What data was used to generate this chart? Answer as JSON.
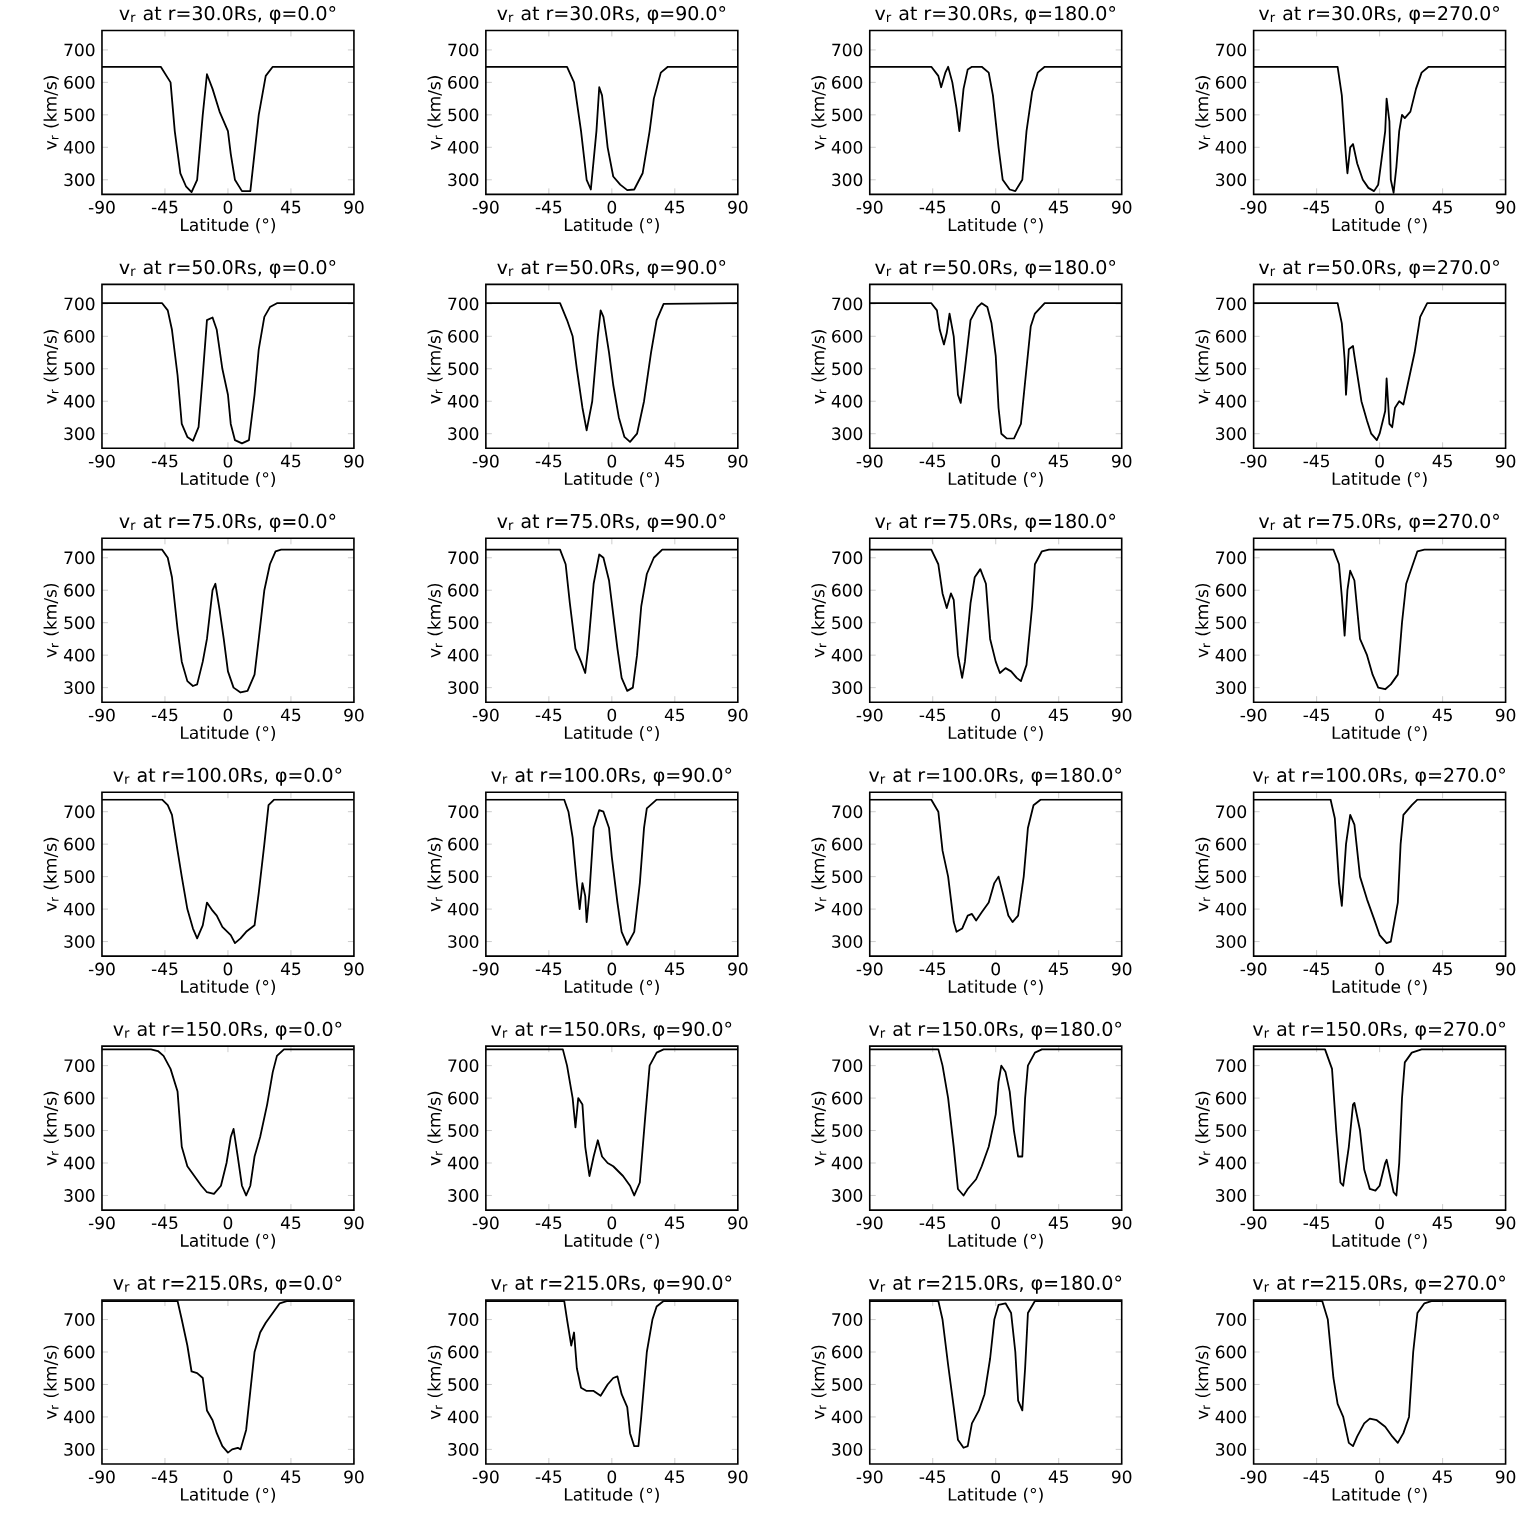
{
  "chart_data": [
    {
      "type": "line",
      "title": "v$_{r}$ at r=30.0Rs, φ=0.0°",
      "xlabel": "Latitude (°)",
      "ylabel": "v$_{r}$ (km/s)",
      "color": "#000000",
      "xlim": [
        -90,
        90
      ],
      "ylim": [
        255,
        760
      ],
      "xticks": [
        -90,
        -45,
        0,
        45,
        90
      ],
      "yticks": [
        300,
        400,
        500,
        600,
        700
      ],
      "x": [
        -90,
        -48,
        -41,
        -38,
        -34,
        -30,
        -26,
        -22,
        -18,
        -15,
        -11,
        -6,
        0,
        2,
        5,
        10,
        16,
        22,
        27,
        32,
        90
      ],
      "values": [
        648,
        648,
        600,
        450,
        320,
        280,
        262,
        300,
        500,
        625,
        580,
        510,
        450,
        380,
        300,
        265,
        265,
        500,
        620,
        648,
        648
      ]
    },
    {
      "type": "line",
      "title": "v$_{r}$ at r=30.0Rs, φ=90.0°",
      "xlabel": "Latitude (°)",
      "ylabel": "v$_{r}$ (km/s)",
      "color": "#000000",
      "xlim": [
        -90,
        90
      ],
      "ylim": [
        255,
        760
      ],
      "xticks": [
        -90,
        -45,
        0,
        45,
        90
      ],
      "yticks": [
        300,
        400,
        500,
        600,
        700
      ],
      "x": [
        -90,
        -32,
        -27,
        -22,
        -18,
        -15,
        -11,
        -9,
        -7,
        -3,
        1,
        6,
        11,
        16,
        22,
        27,
        30,
        35,
        40,
        90
      ],
      "values": [
        648,
        648,
        600,
        450,
        300,
        270,
        450,
        585,
        560,
        400,
        310,
        285,
        268,
        270,
        320,
        450,
        550,
        630,
        648,
        648
      ]
    },
    {
      "type": "line",
      "title": "v$_{r}$ at r=30.0Rs, φ=180.0°",
      "xlabel": "Latitude (°)",
      "ylabel": "v$_{r}$ (km/s)",
      "color": "#000000",
      "xlim": [
        -90,
        90
      ],
      "ylim": [
        255,
        760
      ],
      "xticks": [
        -90,
        -45,
        0,
        45,
        90
      ],
      "yticks": [
        300,
        400,
        500,
        600,
        700
      ],
      "x": [
        -90,
        -46,
        -41,
        -39,
        -36,
        -34,
        -31,
        -28,
        -26,
        -23,
        -20,
        -17,
        -10,
        -5,
        -2,
        2,
        5,
        10,
        14,
        19,
        22,
        26,
        30,
        35,
        90
      ],
      "values": [
        648,
        648,
        620,
        585,
        630,
        648,
        600,
        520,
        450,
        580,
        640,
        648,
        648,
        630,
        560,
        400,
        300,
        270,
        265,
        300,
        450,
        570,
        630,
        648,
        648
      ]
    },
    {
      "type": "line",
      "title": "v$_{r}$ at r=30.0Rs, φ=270.0°",
      "xlabel": "Latitude (°)",
      "ylabel": "v$_{r}$ (km/s)",
      "color": "#000000",
      "xlim": [
        -90,
        90
      ],
      "ylim": [
        255,
        760
      ],
      "xticks": [
        -90,
        -45,
        0,
        45,
        90
      ],
      "yticks": [
        300,
        400,
        500,
        600,
        700
      ],
      "x": [
        -90,
        -30,
        -27,
        -24,
        -23,
        -21,
        -19,
        -16,
        -12,
        -8,
        -4,
        -1,
        1,
        4,
        5,
        7,
        8,
        10,
        12,
        14,
        16,
        18,
        22,
        26,
        30,
        35,
        90
      ],
      "values": [
        648,
        648,
        560,
        370,
        320,
        400,
        410,
        350,
        300,
        275,
        265,
        285,
        350,
        450,
        550,
        480,
        300,
        260,
        340,
        450,
        500,
        490,
        510,
        580,
        630,
        648,
        648
      ]
    },
    {
      "type": "line",
      "title": "v$_{r}$ at r=50.0Rs, φ=0.0°",
      "xlabel": "Latitude (°)",
      "ylabel": "v$_{r}$ (km/s)",
      "color": "#000000",
      "xlim": [
        -90,
        90
      ],
      "ylim": [
        255,
        760
      ],
      "xticks": [
        -90,
        -45,
        0,
        45,
        90
      ],
      "yticks": [
        300,
        400,
        500,
        600,
        700
      ],
      "x": [
        -90,
        -47,
        -43,
        -40,
        -36,
        -33,
        -29,
        -25,
        -21,
        -18,
        -15,
        -11,
        -8,
        -4,
        0,
        2,
        5,
        10,
        15,
        19,
        22,
        26,
        30,
        35,
        90
      ],
      "values": [
        702,
        702,
        680,
        620,
        480,
        330,
        290,
        278,
        320,
        480,
        650,
        658,
        620,
        500,
        420,
        330,
        280,
        270,
        280,
        420,
        560,
        660,
        690,
        702,
        702
      ]
    },
    {
      "type": "line",
      "title": "v$_{r}$ at r=50.0Rs, φ=90.0°",
      "xlabel": "Latitude (°)",
      "ylabel": "v$_{r}$ (km/s)",
      "color": "#000000",
      "xlim": [
        -90,
        90
      ],
      "ylim": [
        255,
        760
      ],
      "xticks": [
        -90,
        -45,
        0,
        45,
        90
      ],
      "yticks": [
        300,
        400,
        500,
        600,
        700
      ],
      "x": [
        -90,
        -37,
        -32,
        -28,
        -25,
        -21,
        -18,
        -14,
        -10,
        -8,
        -6,
        -2,
        1,
        5,
        9,
        13,
        18,
        23,
        28,
        32,
        37,
        90
      ],
      "values": [
        702,
        702,
        650,
        600,
        500,
        380,
        310,
        400,
        600,
        680,
        660,
        550,
        450,
        350,
        290,
        275,
        300,
        400,
        550,
        650,
        700,
        702
      ]
    },
    {
      "type": "line",
      "title": "v$_{r}$ at r=50.0Rs, φ=180.0°",
      "xlabel": "Latitude (°)",
      "ylabel": "v$_{r}$ (km/s)",
      "color": "#000000",
      "xlim": [
        -90,
        90
      ],
      "ylim": [
        255,
        760
      ],
      "xticks": [
        -90,
        -45,
        0,
        45,
        90
      ],
      "yticks": [
        300,
        400,
        500,
        600,
        700
      ],
      "x": [
        -90,
        -46,
        -42,
        -40,
        -37,
        -35,
        -33,
        -30,
        -27,
        -25,
        -22,
        -18,
        -13,
        -10,
        -6,
        -3,
        0,
        2,
        4,
        8,
        13,
        18,
        21,
        25,
        28,
        35,
        90
      ],
      "values": [
        702,
        702,
        680,
        620,
        575,
        610,
        670,
        600,
        420,
        395,
        500,
        650,
        690,
        702,
        690,
        640,
        540,
        380,
        300,
        285,
        285,
        330,
        460,
        630,
        670,
        702,
        702
      ]
    },
    {
      "type": "line",
      "title": "v$_{r}$ at r=50.0Rs, φ=270.0°",
      "xlabel": "Latitude (°)",
      "ylabel": "v$_{r}$ (km/s)",
      "color": "#000000",
      "xlim": [
        -90,
        90
      ],
      "ylim": [
        255,
        760
      ],
      "xticks": [
        -90,
        -45,
        0,
        45,
        90
      ],
      "yticks": [
        300,
        400,
        500,
        600,
        700
      ],
      "x": [
        -90,
        -30,
        -27,
        -25,
        -24,
        -22,
        -19,
        -18,
        -13,
        -9,
        -6,
        -2,
        0,
        4,
        5,
        7,
        9,
        11,
        14,
        17,
        20,
        25,
        29,
        34,
        90
      ],
      "values": [
        702,
        702,
        640,
        530,
        420,
        560,
        570,
        540,
        400,
        340,
        300,
        280,
        300,
        370,
        470,
        330,
        320,
        380,
        400,
        390,
        450,
        550,
        660,
        702,
        702
      ]
    },
    {
      "type": "line",
      "title": "v$_{r}$ at r=75.0Rs, φ=0.0°",
      "xlabel": "Latitude (°)",
      "ylabel": "v$_{r}$ (km/s)",
      "color": "#000000",
      "xlim": [
        -90,
        90
      ],
      "ylim": [
        255,
        760
      ],
      "xticks": [
        -90,
        -45,
        0,
        45,
        90
      ],
      "yticks": [
        300,
        400,
        500,
        600,
        700
      ],
      "x": [
        -90,
        -47,
        -43,
        -40,
        -36,
        -33,
        -29,
        -25,
        -22,
        -18,
        -15,
        -11,
        -9,
        -6,
        -3,
        0,
        4,
        9,
        14,
        19,
        22,
        26,
        30,
        34,
        38,
        90
      ],
      "values": [
        725,
        725,
        700,
        640,
        480,
        380,
        320,
        305,
        310,
        380,
        450,
        600,
        620,
        540,
        450,
        350,
        300,
        285,
        290,
        340,
        450,
        600,
        680,
        720,
        725,
        725
      ]
    },
    {
      "type": "line",
      "title": "v$_{r}$ at r=75.0Rs, φ=90.0°",
      "xlabel": "Latitude (°)",
      "ylabel": "v$_{r}$ (km/s)",
      "color": "#000000",
      "xlim": [
        -90,
        90
      ],
      "ylim": [
        255,
        760
      ],
      "xticks": [
        -90,
        -45,
        0,
        45,
        90
      ],
      "yticks": [
        300,
        400,
        500,
        600,
        700
      ],
      "x": [
        -90,
        -37,
        -33,
        -30,
        -26,
        -22,
        -19,
        -17,
        -13,
        -9,
        -6,
        -2,
        0,
        4,
        7,
        11,
        15,
        18,
        21,
        25,
        30,
        36,
        90
      ],
      "values": [
        725,
        725,
        680,
        560,
        420,
        380,
        345,
        420,
        620,
        710,
        700,
        630,
        560,
        420,
        330,
        290,
        300,
        400,
        550,
        650,
        700,
        725,
        725
      ]
    },
    {
      "type": "line",
      "title": "v$_{r}$ at r=75.0Rs, φ=180.0°",
      "xlabel": "Latitude (°)",
      "ylabel": "v$_{r}$ (km/s)",
      "color": "#000000",
      "xlim": [
        -90,
        90
      ],
      "ylim": [
        255,
        760
      ],
      "xticks": [
        -90,
        -45,
        0,
        45,
        90
      ],
      "yticks": [
        300,
        400,
        500,
        600,
        700
      ],
      "x": [
        -90,
        -46,
        -41,
        -38,
        -35,
        -32,
        -30,
        -27,
        -24,
        -22,
        -18,
        -15,
        -11,
        -7,
        -4,
        0,
        3,
        7,
        11,
        15,
        18,
        22,
        26,
        28,
        33,
        38,
        90
      ],
      "values": [
        725,
        725,
        680,
        590,
        545,
        590,
        570,
        400,
        330,
        380,
        560,
        640,
        665,
        620,
        450,
        380,
        345,
        360,
        350,
        330,
        320,
        370,
        550,
        680,
        720,
        725,
        725
      ]
    },
    {
      "type": "line",
      "title": "v$_{r}$ at r=75.0Rs, φ=270.0°",
      "xlabel": "Latitude (°)",
      "ylabel": "v$_{r}$ (km/s)",
      "color": "#000000",
      "xlim": [
        -90,
        90
      ],
      "ylim": [
        255,
        760
      ],
      "xticks": [
        -90,
        -45,
        0,
        45,
        90
      ],
      "yticks": [
        300,
        400,
        500,
        600,
        700
      ],
      "x": [
        -90,
        -33,
        -29,
        -27,
        -25,
        -23,
        -21,
        -18,
        -14,
        -9,
        -5,
        -1,
        4,
        8,
        13,
        16,
        19,
        23,
        27,
        32,
        90
      ],
      "values": [
        725,
        725,
        680,
        580,
        460,
        600,
        660,
        630,
        450,
        400,
        340,
        300,
        295,
        310,
        340,
        500,
        620,
        670,
        720,
        725,
        725
      ]
    },
    {
      "type": "line",
      "title": "v$_{r}$ at r=100.0Rs, φ=0.0°",
      "xlabel": "Latitude (°)",
      "ylabel": "v$_{r}$ (km/s)",
      "color": "#000000",
      "xlim": [
        -90,
        90
      ],
      "ylim": [
        255,
        760
      ],
      "xticks": [
        -90,
        -45,
        0,
        45,
        90
      ],
      "yticks": [
        300,
        400,
        500,
        600,
        700
      ],
      "x": [
        -90,
        -47,
        -43,
        -40,
        -36,
        -33,
        -29,
        -25,
        -22,
        -18,
        -15,
        -11,
        -8,
        -4,
        2,
        5,
        9,
        13,
        19,
        22,
        26,
        29,
        33,
        90
      ],
      "values": [
        737,
        737,
        720,
        690,
        580,
        500,
        400,
        340,
        310,
        350,
        420,
        395,
        380,
        345,
        320,
        295,
        310,
        330,
        350,
        450,
        600,
        720,
        737,
        737
      ]
    },
    {
      "type": "line",
      "title": "v$_{r}$ at r=100.0Rs, φ=90.0°",
      "xlabel": "Latitude (°)",
      "ylabel": "v$_{r}$ (km/s)",
      "color": "#000000",
      "xlim": [
        -90,
        90
      ],
      "ylim": [
        255,
        760
      ],
      "xticks": [
        -90,
        -45,
        0,
        45,
        90
      ],
      "yticks": [
        300,
        400,
        500,
        600,
        700
      ],
      "x": [
        -90,
        -34,
        -31,
        -28,
        -25,
        -23,
        -21,
        -19,
        -18,
        -16,
        -13,
        -9,
        -6,
        -2,
        0,
        4,
        7,
        11,
        16,
        20,
        23,
        25,
        32,
        90
      ],
      "values": [
        737,
        737,
        700,
        620,
        480,
        400,
        480,
        440,
        360,
        450,
        650,
        705,
        700,
        650,
        560,
        420,
        330,
        290,
        330,
        480,
        650,
        710,
        737,
        737
      ]
    },
    {
      "type": "line",
      "title": "v$_{r}$ at r=100.0Rs, φ=180.0°",
      "xlabel": "Latitude (°)",
      "ylabel": "v$_{r}$ (km/s)",
      "color": "#000000",
      "xlim": [
        -90,
        90
      ],
      "ylim": [
        255,
        760
      ],
      "xticks": [
        -90,
        -45,
        0,
        45,
        90
      ],
      "yticks": [
        300,
        400,
        500,
        600,
        700
      ],
      "x": [
        -90,
        -46,
        -41,
        -38,
        -34,
        -30,
        -28,
        -24,
        -20,
        -17,
        -14,
        -10,
        -5,
        -1,
        2,
        5,
        9,
        12,
        16,
        20,
        23,
        27,
        32,
        90
      ],
      "values": [
        737,
        737,
        700,
        580,
        500,
        360,
        330,
        340,
        380,
        385,
        365,
        390,
        420,
        480,
        500,
        450,
        380,
        360,
        380,
        500,
        650,
        720,
        737,
        737
      ]
    },
    {
      "type": "line",
      "title": "v$_{r}$ at r=100.0Rs, φ=270.0°",
      "xlabel": "Latitude (°)",
      "ylabel": "v$_{r}$ (km/s)",
      "color": "#000000",
      "xlim": [
        -90,
        90
      ],
      "ylim": [
        255,
        760
      ],
      "xticks": [
        -90,
        -45,
        0,
        45,
        90
      ],
      "yticks": [
        300,
        400,
        500,
        600,
        700
      ],
      "x": [
        -90,
        -35,
        -32,
        -29,
        -27,
        -24,
        -21,
        -18,
        -14,
        -9,
        -4,
        0,
        5,
        8,
        13,
        15,
        17,
        23,
        27,
        90
      ],
      "values": [
        737,
        737,
        680,
        480,
        410,
        600,
        690,
        660,
        500,
        430,
        370,
        320,
        295,
        300,
        420,
        600,
        690,
        720,
        737,
        737
      ]
    },
    {
      "type": "line",
      "title": "v$_{r}$ at r=150.0Rs, φ=0.0°",
      "xlabel": "Latitude (°)",
      "ylabel": "v$_{r}$ (km/s)",
      "color": "#000000",
      "xlim": [
        -90,
        90
      ],
      "ylim": [
        255,
        760
      ],
      "xticks": [
        -90,
        -45,
        0,
        45,
        90
      ],
      "yticks": [
        300,
        400,
        500,
        600,
        700
      ],
      "x": [
        -90,
        -55,
        -50,
        -46,
        -41,
        -36,
        -33,
        -29,
        -24,
        -19,
        -15,
        -10,
        -5,
        -1,
        2,
        4,
        7,
        10,
        13,
        16,
        19,
        23,
        28,
        32,
        35,
        40,
        90
      ],
      "values": [
        750,
        750,
        745,
        730,
        690,
        620,
        450,
        390,
        360,
        330,
        310,
        305,
        330,
        400,
        480,
        505,
        420,
        330,
        300,
        330,
        420,
        480,
        580,
        680,
        730,
        750,
        750
      ]
    },
    {
      "type": "line",
      "title": "v$_{r}$ at r=150.0Rs, φ=90.0°",
      "xlabel": "Latitude (°)",
      "ylabel": "v$_{r}$ (km/s)",
      "color": "#000000",
      "xlim": [
        -90,
        90
      ],
      "ylim": [
        255,
        760
      ],
      "xticks": [
        -90,
        -45,
        0,
        45,
        90
      ],
      "yticks": [
        300,
        400,
        500,
        600,
        700
      ],
      "x": [
        -90,
        -35,
        -32,
        -28,
        -26,
        -24,
        -21,
        -19,
        -16,
        -13,
        -10,
        -7,
        -3,
        1,
        8,
        13,
        16,
        20,
        24,
        27,
        32,
        37,
        90
      ],
      "values": [
        750,
        750,
        700,
        600,
        510,
        600,
        580,
        450,
        360,
        420,
        470,
        420,
        400,
        390,
        360,
        330,
        300,
        340,
        550,
        700,
        740,
        750,
        750
      ]
    },
    {
      "type": "line",
      "title": "v$_{r}$ at r=150.0Rs, φ=180.0°",
      "xlabel": "Latitude (°)",
      "ylabel": "v$_{r}$ (km/s)",
      "color": "#000000",
      "xlim": [
        -90,
        90
      ],
      "ylim": [
        255,
        760
      ],
      "xticks": [
        -90,
        -45,
        0,
        45,
        90
      ],
      "yticks": [
        300,
        400,
        500,
        600,
        700
      ],
      "x": [
        -90,
        -41,
        -38,
        -34,
        -30,
        -27,
        -23,
        -20,
        -14,
        -10,
        -5,
        0,
        2,
        4,
        7,
        10,
        13,
        16,
        19,
        21,
        23,
        28,
        33,
        90
      ],
      "values": [
        750,
        750,
        700,
        600,
        450,
        320,
        300,
        320,
        350,
        390,
        450,
        550,
        650,
        700,
        680,
        620,
        500,
        420,
        420,
        600,
        700,
        740,
        750,
        750
      ]
    },
    {
      "type": "line",
      "title": "v$_{r}$ at r=150.0Rs, φ=270.0°",
      "xlabel": "Latitude (°)",
      "ylabel": "v$_{r}$ (km/s)",
      "color": "#000000",
      "xlim": [
        -90,
        90
      ],
      "ylim": [
        255,
        760
      ],
      "xticks": [
        -90,
        -45,
        0,
        45,
        90
      ],
      "yticks": [
        300,
        400,
        500,
        600,
        700
      ],
      "x": [
        -90,
        -39,
        -34,
        -31,
        -28,
        -26,
        -22,
        -19,
        -18,
        -14,
        -11,
        -7,
        -3,
        0,
        4,
        5,
        8,
        10,
        12,
        14,
        16,
        18,
        23,
        30,
        90
      ],
      "values": [
        750,
        750,
        690,
        500,
        340,
        330,
        450,
        580,
        585,
        500,
        380,
        320,
        315,
        330,
        400,
        410,
        350,
        310,
        300,
        400,
        600,
        710,
        740,
        750,
        750
      ]
    },
    {
      "type": "line",
      "title": "v$_{r}$ at r=215.0Rs, φ=0.0°",
      "xlabel": "Latitude (°)",
      "ylabel": "v$_{r}$ (km/s)",
      "color": "#000000",
      "xlim": [
        -90,
        90
      ],
      "ylim": [
        255,
        760
      ],
      "xticks": [
        -90,
        -45,
        0,
        45,
        90
      ],
      "yticks": [
        300,
        400,
        500,
        600,
        700
      ],
      "x": [
        -90,
        -36,
        -33,
        -29,
        -26,
        -22,
        -18,
        -15,
        -11,
        -8,
        -4,
        0,
        3,
        7,
        9,
        13,
        16,
        19,
        23,
        27,
        32,
        37,
        42,
        90
      ],
      "values": [
        757,
        757,
        700,
        620,
        540,
        535,
        520,
        420,
        390,
        350,
        310,
        290,
        300,
        305,
        300,
        360,
        480,
        600,
        660,
        690,
        720,
        750,
        757,
        757
      ]
    },
    {
      "type": "line",
      "title": "v$_{r}$ at r=215.0Rs, φ=90.0°",
      "xlabel": "Latitude (°)",
      "ylabel": "v$_{r}$ (km/s)",
      "color": "#000000",
      "xlim": [
        -90,
        90
      ],
      "ylim": [
        255,
        760
      ],
      "xticks": [
        -90,
        -45,
        0,
        45,
        90
      ],
      "yticks": [
        300,
        400,
        500,
        600,
        700
      ],
      "x": [
        -90,
        -34,
        -32,
        -29,
        -27,
        -25,
        -22,
        -18,
        -13,
        -8,
        -3,
        1,
        4,
        7,
        11,
        13,
        16,
        19,
        21,
        25,
        29,
        32,
        37,
        90
      ],
      "values": [
        757,
        757,
        700,
        620,
        660,
        550,
        490,
        480,
        480,
        465,
        500,
        520,
        525,
        470,
        430,
        350,
        310,
        310,
        400,
        600,
        700,
        740,
        757,
        757
      ]
    },
    {
      "type": "line",
      "title": "v$_{r}$ at r=215.0Rs, φ=180.0°",
      "xlabel": "Latitude (°)",
      "ylabel": "v$_{r}$ (km/s)",
      "color": "#000000",
      "xlim": [
        -90,
        90
      ],
      "ylim": [
        255,
        760
      ],
      "xticks": [
        -90,
        -45,
        0,
        45,
        90
      ],
      "yticks": [
        300,
        400,
        500,
        600,
        700
      ],
      "x": [
        -90,
        -41,
        -38,
        -34,
        -30,
        -27,
        -23,
        -20,
        -17,
        -12,
        -8,
        -4,
        -1,
        2,
        7,
        11,
        14,
        16,
        19,
        21,
        23,
        28,
        90
      ],
      "values": [
        757,
        757,
        700,
        560,
        430,
        330,
        305,
        310,
        380,
        420,
        470,
        580,
        700,
        745,
        750,
        720,
        600,
        450,
        420,
        550,
        720,
        757,
        757
      ]
    },
    {
      "type": "line",
      "title": "v$_{r}$ at r=215.0Rs, φ=270.0°",
      "xlabel": "Latitude (°)",
      "ylabel": "v$_{r}$ (km/s)",
      "color": "#000000",
      "xlim": [
        -90,
        90
      ],
      "ylim": [
        255,
        760
      ],
      "xticks": [
        -90,
        -45,
        0,
        45,
        90
      ],
      "yticks": [
        300,
        400,
        500,
        600,
        700
      ],
      "x": [
        -90,
        -41,
        -37,
        -33,
        -30,
        -26,
        -22,
        -19,
        -16,
        -11,
        -7,
        -2,
        4,
        9,
        13,
        17,
        21,
        24,
        27,
        32,
        37,
        90
      ],
      "values": [
        757,
        757,
        700,
        520,
        440,
        400,
        320,
        310,
        340,
        380,
        395,
        390,
        370,
        340,
        320,
        350,
        400,
        600,
        720,
        750,
        757,
        757
      ]
    }
  ]
}
